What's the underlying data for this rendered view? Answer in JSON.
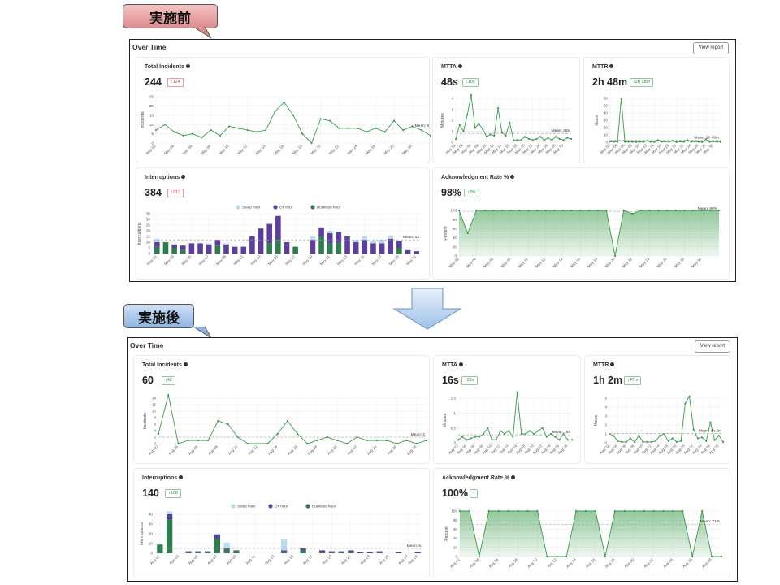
{
  "labels": {
    "before": "実施前",
    "after": "実施後"
  },
  "colors": {
    "line": "#3a9a4a",
    "business": "#2e7d4f",
    "off": "#5b3e9e",
    "sleep": "#b6dcf2",
    "up": "#d14040",
    "down": "#2c8a3f"
  },
  "before": {
    "title": "Over Time",
    "view_report": "View report",
    "cards": {
      "incidents": {
        "title": "Total Incidents",
        "value": "244",
        "badge": "↑114",
        "trend": "up"
      },
      "mtta": {
        "title": "MTTA",
        "value": "48s",
        "badge": "↓10s",
        "trend": "down"
      },
      "mttr": {
        "title": "MTTR",
        "value": "2h 48m",
        "badge": "↓2h 18m",
        "trend": "down"
      },
      "interruptions": {
        "title": "Interruptions",
        "value": "384",
        "badge": "↑213",
        "trend": "up"
      },
      "ack": {
        "title": "Acknowledgment Rate %",
        "value": "98%",
        "badge": "↑3%",
        "trend": "down"
      }
    }
  },
  "after": {
    "title": "Over Time",
    "view_report": "View report",
    "cards": {
      "incidents": {
        "title": "Total Incidents",
        "value": "60",
        "badge": "↓42",
        "trend": "down"
      },
      "mtta": {
        "title": "MTTA",
        "value": "16s",
        "badge": "↓23s",
        "trend": "down"
      },
      "mttr": {
        "title": "MTTR",
        "value": "1h 2m",
        "badge": "↓47m",
        "trend": "down"
      },
      "interruptions": {
        "title": "Interruptions",
        "value": "140",
        "badge": "↓108",
        "trend": "down"
      },
      "ack": {
        "title": "Acknowledgment Rate %",
        "value": "100%",
        "badge": "-",
        "trend": "down"
      }
    }
  },
  "chart_data": [
    {
      "id": "before-incidents",
      "type": "line",
      "ylabel": "Incidents",
      "ylim": [
        0,
        25
      ],
      "yticks": [
        0,
        5,
        10,
        15,
        20,
        25
      ],
      "xticks": [
        "May 02",
        "May 04",
        "May 06",
        "May 08",
        "May 10",
        "May 12",
        "May 14",
        "May 16",
        "May 18",
        "May 20",
        "May 22",
        "May 24",
        "May 26",
        "May 28",
        "May 30"
      ],
      "values": [
        7,
        10,
        6,
        4,
        5,
        3,
        7,
        4,
        9,
        8,
        7,
        6,
        7,
        17,
        22,
        15,
        5,
        0,
        13,
        12,
        8,
        8,
        8,
        6,
        8,
        6,
        12,
        7,
        9,
        7,
        4
      ],
      "mean": 8,
      "mean_label": "Mean: 8"
    },
    {
      "id": "before-mtta",
      "type": "line",
      "ylabel": "Minutes",
      "ylim": [
        0,
        4
      ],
      "yticks": [
        0,
        1,
        2,
        3,
        4
      ],
      "xticks": [
        "May 02",
        "May 04",
        "May 06",
        "May 08",
        "May 10",
        "May 12",
        "May 14",
        "May 16",
        "May 18",
        "May 20",
        "May 22",
        "May 24",
        "May 26",
        "May 28",
        "May 30"
      ],
      "values": [
        0.3,
        1.6,
        1.0,
        2.5,
        4.3,
        1.3,
        1.7,
        1.2,
        0.5,
        0.7,
        0.6,
        3.1,
        0.9,
        0.6,
        1.8,
        0.2,
        0.2,
        0.2,
        0.5,
        0.3,
        0.2,
        0.3,
        0.5,
        0.2,
        0.4,
        0.2,
        0.5,
        0.3,
        0.2,
        0.4,
        0.3
      ],
      "mean": 0.8,
      "mean_label": "Mean: 48s"
    },
    {
      "id": "before-mttr",
      "type": "line",
      "ylabel": "Hours",
      "ylim": [
        0,
        60
      ],
      "yticks": [
        0,
        10,
        20,
        30,
        40,
        50,
        60
      ],
      "xticks": [
        "May 02",
        "May 04",
        "May 06",
        "May 08",
        "May 10",
        "May 12",
        "May 14",
        "May 16",
        "May 18",
        "May 20",
        "May 22",
        "May 24",
        "May 26",
        "May 28",
        "May 30"
      ],
      "values": [
        1,
        0.5,
        0.5,
        60,
        0.5,
        0.5,
        0.5,
        0.2,
        0.5,
        0.3,
        2,
        0.5,
        0.3,
        3,
        0.5,
        1,
        0.5,
        2,
        0.3,
        1,
        0.5,
        3,
        0.5,
        1,
        0.5,
        0.3,
        4,
        0.5,
        1,
        0.5,
        0.3
      ],
      "mean": 2.8,
      "mean_label": "Mean: 2h 48m"
    },
    {
      "id": "before-interruptions",
      "type": "bar",
      "stacked": true,
      "ylabel": "Interruptions",
      "ylim": [
        0,
        35
      ],
      "yticks": [
        0,
        5,
        10,
        15,
        20,
        25,
        30,
        35
      ],
      "legend": [
        "Sleep hour",
        "Off hour",
        "Business hour"
      ],
      "xticks": [
        "May 01",
        "May 03",
        "May 05",
        "May 07",
        "May 09",
        "May 11",
        "May 13",
        "May 15",
        "May 17",
        "May 19",
        "May 21",
        "May 23",
        "May 25",
        "May 27",
        "May 29",
        "May 31"
      ],
      "series": [
        {
          "name": "Business hour",
          "values": [
            6,
            10,
            5,
            3,
            0,
            0,
            0,
            7,
            0,
            0,
            0,
            0,
            0,
            9,
            12,
            0,
            6,
            0,
            0,
            15,
            9,
            10,
            0,
            0,
            0,
            0,
            0,
            0,
            5,
            0,
            0
          ]
        },
        {
          "name": "Off hour",
          "values": [
            4,
            0,
            3,
            4,
            9,
            9,
            8,
            5,
            8,
            6,
            6,
            15,
            22,
            17,
            21,
            10,
            0,
            0,
            12,
            8,
            9,
            9,
            15,
            10,
            12,
            9,
            9,
            13,
            6,
            3,
            2
          ]
        },
        {
          "name": "Sleep hour",
          "values": [
            3,
            0,
            0,
            0,
            0,
            0,
            1,
            0,
            1,
            0,
            0,
            0,
            0,
            0,
            0,
            0,
            0,
            0,
            3,
            0,
            2,
            0,
            0,
            2,
            3,
            2,
            3,
            2,
            0,
            0,
            0
          ]
        }
      ],
      "mean": 12,
      "mean_label": "Mean: 12"
    },
    {
      "id": "before-ack",
      "type": "area",
      "ylabel": "Percent",
      "ylim": [
        0,
        100
      ],
      "yticks": [
        0,
        20,
        40,
        60,
        80,
        100
      ],
      "xticks": [
        "May 02",
        "May 04",
        "May 06",
        "May 08",
        "May 10",
        "May 12",
        "May 14",
        "May 16",
        "May 18",
        "May 20",
        "May 22",
        "May 24",
        "May 26",
        "May 28",
        "May 30"
      ],
      "values": [
        100,
        50,
        100,
        100,
        100,
        100,
        100,
        100,
        100,
        100,
        100,
        100,
        100,
        100,
        100,
        100,
        100,
        100,
        0,
        100,
        93,
        100,
        100,
        100,
        100,
        100,
        100,
        100,
        100,
        100,
        100
      ],
      "mean": 98,
      "mean_label": "Mean: 98%"
    },
    {
      "id": "after-incidents",
      "type": "line",
      "ylabel": "Incidents",
      "ylim": [
        0,
        14
      ],
      "yticks": [
        0,
        2,
        4,
        6,
        8,
        10,
        12,
        14
      ],
      "xticks": [
        "Aug 02",
        "Aug 04",
        "Aug 06",
        "Aug 08",
        "Aug 10",
        "Aug 12",
        "Aug 14",
        "Aug 16",
        "Aug 18",
        "Aug 20",
        "Aug 22",
        "Aug 24",
        "Aug 26",
        "Aug 28"
      ],
      "values": [
        3,
        15,
        0,
        1,
        1,
        1,
        7,
        6,
        2,
        0,
        0,
        0,
        3,
        7,
        3,
        0,
        1,
        2,
        1,
        0,
        2,
        1,
        1,
        1,
        0,
        1,
        0,
        1
      ],
      "mean": 2,
      "mean_label": "Mean: 2"
    },
    {
      "id": "after-mtta",
      "type": "line",
      "ylabel": "Minutes",
      "ylim": [
        0,
        1.5
      ],
      "yticks": [
        0,
        0.5,
        1,
        1.5
      ],
      "xticks": [
        "Aug 02",
        "Aug 04",
        "Aug 06",
        "Aug 08",
        "Aug 10",
        "Aug 12",
        "Aug 14",
        "Aug 16",
        "Aug 18",
        "Aug 20",
        "Aug 22",
        "Aug 24",
        "Aug 26",
        "Aug 28"
      ],
      "values": [
        0.1,
        0.2,
        0.1,
        0.15,
        0.2,
        0.2,
        0.3,
        0.5,
        0.1,
        0.1,
        0.4,
        0.3,
        0.4,
        0.2,
        1.7,
        0.3,
        0.3,
        0.4,
        0.3,
        0.4,
        0.5,
        0.2,
        0.3,
        0.2,
        0.1,
        0.3,
        0.1,
        0.1
      ],
      "mean": 0.27,
      "mean_label": "Mean: 16s"
    },
    {
      "id": "after-mttr",
      "type": "line",
      "ylabel": "Hours",
      "ylim": [
        0,
        5
      ],
      "yticks": [
        0,
        1,
        2,
        3,
        4,
        5
      ],
      "xticks": [
        "Aug 02",
        "Aug 04",
        "Aug 06",
        "Aug 08",
        "Aug 10",
        "Aug 12",
        "Aug 14",
        "Aug 16",
        "Aug 18",
        "Aug 20",
        "Aug 22",
        "Aug 24",
        "Aug 26",
        "Aug 28"
      ],
      "values": [
        1,
        0.8,
        0.2,
        0.1,
        0.1,
        0.5,
        0.1,
        0.8,
        0.1,
        0.1,
        0.1,
        0.2,
        0.8,
        1.0,
        0.2,
        0.5,
        0.1,
        0.2,
        4.4,
        5.2,
        1.5,
        0.5,
        0.6,
        0.2,
        2.3,
        0.3,
        0.8,
        0.1
      ],
      "mean": 1.03,
      "mean_label": "Mean: 1h 2m"
    },
    {
      "id": "after-interruptions",
      "type": "bar",
      "stacked": true,
      "ylabel": "Interruptions",
      "ylim": [
        0,
        40
      ],
      "yticks": [
        0,
        10,
        20,
        30,
        40
      ],
      "legend": [
        "Sleep hour",
        "Off hour",
        "Business hour"
      ],
      "xticks": [
        "Aug 01",
        "Aug 03",
        "Aug 05",
        "Aug 07",
        "Aug 09",
        "Aug 11",
        "Aug 13",
        "Aug 15",
        "Aug 17",
        "Aug 19",
        "Aug 21",
        "Aug 23",
        "Aug 25",
        "Aug 27",
        "Aug 29"
      ],
      "series": [
        {
          "name": "Business hour",
          "values": [
            9,
            35,
            0,
            1,
            1,
            1,
            15,
            4,
            2,
            0,
            0,
            0,
            0,
            1,
            0,
            3,
            0,
            1,
            1,
            1,
            1,
            0,
            0,
            1,
            0,
            0,
            0,
            0
          ]
        },
        {
          "name": "Off hour",
          "values": [
            0,
            5,
            0,
            1,
            1,
            1,
            4,
            1,
            1,
            0,
            0,
            0,
            0,
            2,
            0,
            2,
            0,
            2,
            1,
            1,
            2,
            1,
            1,
            1,
            0,
            1,
            0,
            1
          ]
        },
        {
          "name": "Sleep hour",
          "values": [
            0,
            3,
            0,
            0,
            0,
            0,
            1,
            6,
            0,
            0,
            0,
            0,
            0,
            11,
            0,
            0,
            0,
            0,
            0,
            0,
            0,
            0,
            0,
            0,
            0,
            0,
            0,
            0
          ]
        }
      ],
      "mean": 5,
      "mean_label": "Mean: 5"
    },
    {
      "id": "after-ack",
      "type": "area",
      "ylabel": "Percent",
      "ylim": [
        0,
        100
      ],
      "yticks": [
        0,
        20,
        40,
        60,
        80,
        100
      ],
      "xticks": [
        "Aug 02",
        "Aug 04",
        "Aug 06",
        "Aug 08",
        "Aug 10",
        "Aug 12",
        "Aug 14",
        "Aug 16",
        "Aug 18",
        "Aug 20",
        "Aug 22",
        "Aug 24",
        "Aug 26",
        "Aug 28"
      ],
      "values": [
        100,
        100,
        0,
        100,
        100,
        100,
        100,
        100,
        100,
        0,
        0,
        0,
        100,
        100,
        100,
        0,
        100,
        100,
        100,
        100,
        100,
        100,
        100,
        100,
        0,
        100,
        0,
        0
      ],
      "mean": 71,
      "mean_label": "Mean: 71%"
    }
  ]
}
